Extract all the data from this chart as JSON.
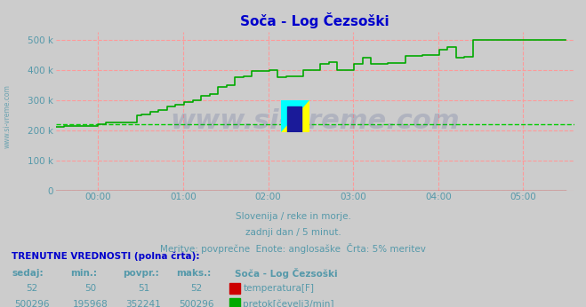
{
  "title": "Soča - Log Čezsoški",
  "title_color": "#0000cc",
  "bg_color": "#cccccc",
  "plot_bg_color": "#cccccc",
  "grid_color": "#ff9999",
  "xlabel_color": "#5599aa",
  "ylabel_color": "#5599aa",
  "xlim": [
    -0.5,
    5.6
  ],
  "ylim": [
    0,
    525000
  ],
  "yticks": [
    0,
    100000,
    200000,
    300000,
    400000,
    500000
  ],
  "ytick_labels": [
    "0",
    "100 k",
    "200 k",
    "300 k",
    "400 k",
    "500 k"
  ],
  "xticks": [
    0,
    1,
    2,
    3,
    4,
    5
  ],
  "xtick_labels": [
    "00:00",
    "01:00",
    "02:00",
    "03:00",
    "04:00",
    "05:00"
  ],
  "flow_color": "#00aa00",
  "temp_color": "#cc0000",
  "avg_color": "#00cc00",
  "avg_value": 220000,
  "subtitle1": "Slovenija / reke in morje.",
  "subtitle2": "zadnji dan / 5 minut.",
  "subtitle3": "Meritve: povprečne  Enote: anglosaške  Črta: 5% meritev",
  "subtitle_color": "#5599aa",
  "table_title": "TRENUTNE VREDNOSTI (polna črta):",
  "table_title_color": "#0000cc",
  "col_headers": [
    "sedaj:",
    "min.:",
    "povpr.:",
    "maks.:",
    "Soča - Log Čezsoški"
  ],
  "col_color": "#5599aa",
  "col_header_color": "#5599aa",
  "legend_items": [
    "temperatura[F]",
    "pretok[čevelj3/min]"
  ],
  "legend_colors": [
    "#cc0000",
    "#00aa00"
  ],
  "side_label": "www.si-vreme.com",
  "side_label_color": "#5599aa",
  "watermark_text": "www.si-vreme.com",
  "watermark_color": "#334488",
  "watermark_alpha": 0.18,
  "flow_steps": [
    [
      -0.5,
      210000
    ],
    [
      -0.4,
      215000
    ],
    [
      0.0,
      220000
    ],
    [
      0.08,
      220000
    ],
    [
      0.09,
      225000
    ],
    [
      0.45,
      225000
    ],
    [
      0.46,
      248000
    ],
    [
      0.5,
      248000
    ],
    [
      0.51,
      253000
    ],
    [
      0.6,
      253000
    ],
    [
      0.61,
      260000
    ],
    [
      0.7,
      260000
    ],
    [
      0.71,
      268000
    ],
    [
      0.8,
      268000
    ],
    [
      0.81,
      278000
    ],
    [
      0.9,
      278000
    ],
    [
      0.91,
      285000
    ],
    [
      1.0,
      285000
    ],
    [
      1.01,
      293000
    ],
    [
      1.1,
      293000
    ],
    [
      1.11,
      298000
    ],
    [
      1.2,
      298000
    ],
    [
      1.21,
      315000
    ],
    [
      1.3,
      315000
    ],
    [
      1.31,
      320000
    ],
    [
      1.4,
      320000
    ],
    [
      1.41,
      343000
    ],
    [
      1.5,
      343000
    ],
    [
      1.51,
      348000
    ],
    [
      1.6,
      348000
    ],
    [
      1.61,
      375000
    ],
    [
      1.7,
      375000
    ],
    [
      1.71,
      378000
    ],
    [
      1.8,
      378000
    ],
    [
      1.81,
      395000
    ],
    [
      2.0,
      395000
    ],
    [
      2.01,
      400000
    ],
    [
      2.1,
      400000
    ],
    [
      2.11,
      375000
    ],
    [
      2.2,
      375000
    ],
    [
      2.21,
      378000
    ],
    [
      2.4,
      378000
    ],
    [
      2.41,
      400000
    ],
    [
      2.6,
      400000
    ],
    [
      2.61,
      420000
    ],
    [
      2.7,
      420000
    ],
    [
      2.71,
      425000
    ],
    [
      2.8,
      425000
    ],
    [
      2.81,
      400000
    ],
    [
      3.0,
      400000
    ],
    [
      3.01,
      420000
    ],
    [
      3.1,
      420000
    ],
    [
      3.11,
      442000
    ],
    [
      3.2,
      442000
    ],
    [
      3.21,
      420000
    ],
    [
      3.4,
      420000
    ],
    [
      3.41,
      422000
    ],
    [
      3.6,
      422000
    ],
    [
      3.61,
      445000
    ],
    [
      3.8,
      445000
    ],
    [
      3.81,
      450000
    ],
    [
      4.0,
      450000
    ],
    [
      4.01,
      468000
    ],
    [
      4.1,
      468000
    ],
    [
      4.11,
      475000
    ],
    [
      4.2,
      475000
    ],
    [
      4.21,
      440000
    ],
    [
      4.3,
      440000
    ],
    [
      4.31,
      443000
    ],
    [
      4.4,
      443000
    ],
    [
      4.41,
      500296
    ],
    [
      5.5,
      500296
    ]
  ]
}
